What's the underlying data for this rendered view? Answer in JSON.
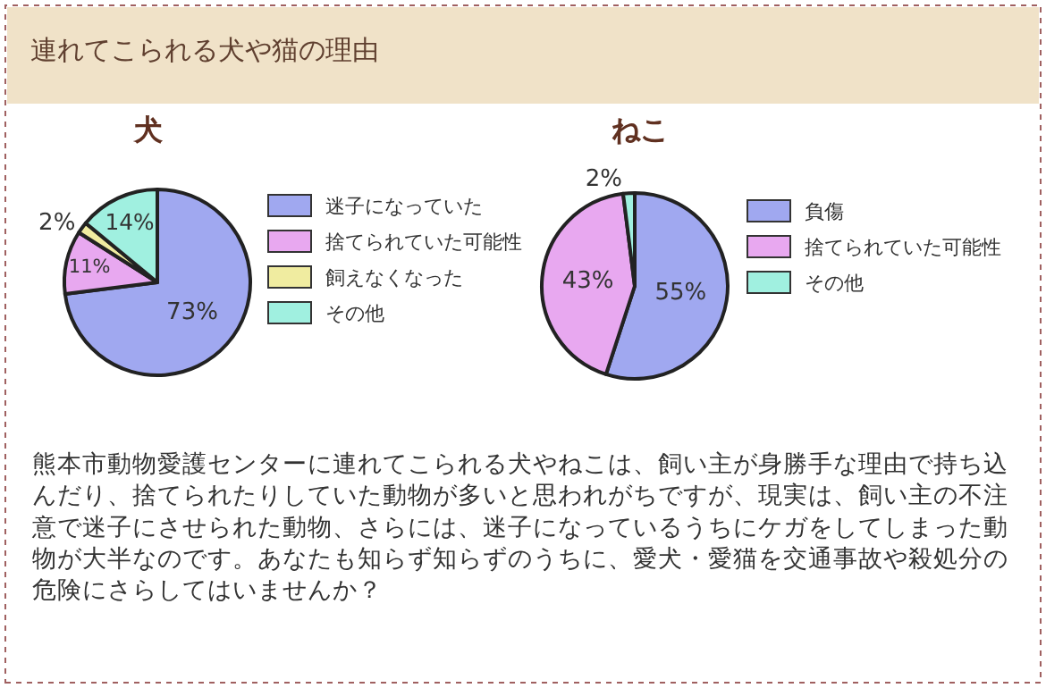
{
  "chart_data": [
    {
      "type": "other",
      "title": "連れてこられる犬や猫の理由"
    },
    {
      "type": "pie",
      "title": "犬",
      "categories": [
        "迷子になっていた",
        "捨てられていた可能性",
        "飼えなくなった",
        "その他"
      ],
      "values": [
        73,
        11,
        2,
        14
      ],
      "value_labels": [
        "73%",
        "11%",
        "2%",
        "14%"
      ],
      "colors": [
        "#a0a8f0",
        "#e8a8f0",
        "#f0eca0",
        "#a0f0e0"
      ],
      "legend": "right"
    },
    {
      "type": "pie",
      "title": "ねこ",
      "categories": [
        "負傷",
        "捨てられていた可能性",
        "その他"
      ],
      "values": [
        55,
        43,
        2
      ],
      "value_labels": [
        "55%",
        "43%",
        "2%"
      ],
      "colors": [
        "#a0a8f0",
        "#e8a8f0",
        "#a0f0e0"
      ],
      "legend": "right"
    },
    {
      "type": "other",
      "annotations": [
        "熊本市動物愛護センターに連れてこられる犬やねこは、飼い主が身勝手な理由で持ち込んだり、捨てられたりしていた動物が多いと思われがちですが、現実は、飼い主の不注意で迷子にさせられた動物、さらには、迷子になっているうちにケガをしてしまった動物が大半なのです。あなたも知らず知らずのうちに、愛犬・愛猫を交通事故や殺処分の危険にさらしてはいませんか？"
      ]
    }
  ]
}
